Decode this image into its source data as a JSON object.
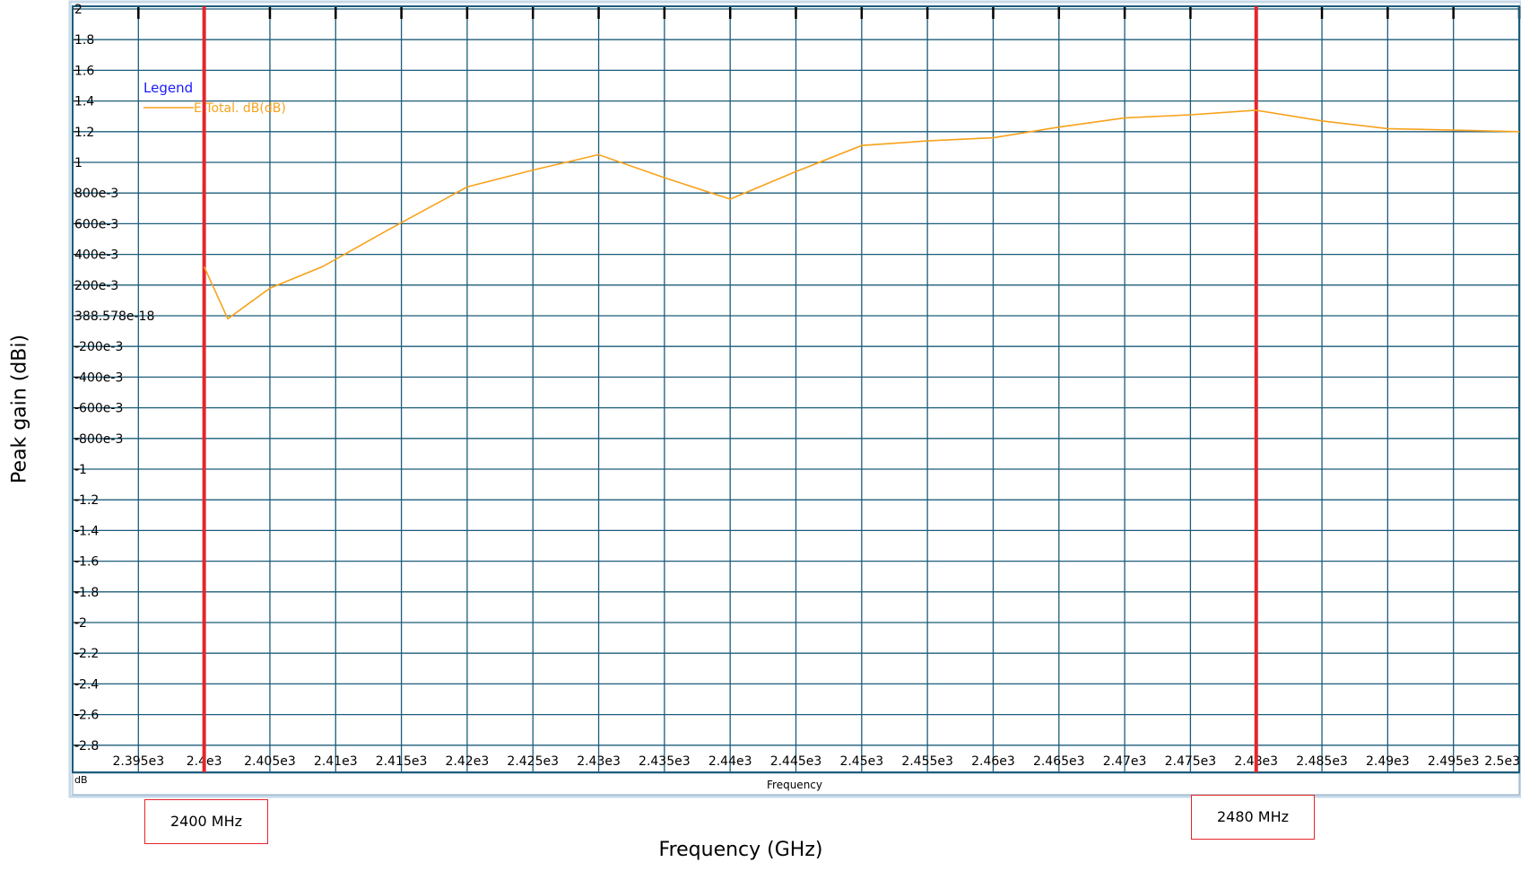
{
  "chart_data": {
    "type": "line",
    "legend_title": "Legend",
    "legend_placement": "top-left",
    "grid": true,
    "xlabel": "Frequency (GHz)",
    "inner_xlabel": "Frequency",
    "ylabel": "Peak gain (dBi)",
    "unit_label": "dB",
    "xlim": [
      2390,
      2500
    ],
    "ylim": [
      -2.9,
      2.0
    ],
    "x_ticks": [
      "2.395e3",
      "2.4e3",
      "2.405e3",
      "2.41e3",
      "2.415e3",
      "2.42e3",
      "2.425e3",
      "2.43e3",
      "2.435e3",
      "2.44e3",
      "2.445e3",
      "2.45e3",
      "2.455e3",
      "2.46e3",
      "2.465e3",
      "2.47e3",
      "2.475e3",
      "2.48e3",
      "2.485e3",
      "2.49e3",
      "2.495e3",
      "2.5e3"
    ],
    "y_ticks": [
      "2",
      "1.8",
      "1.6",
      "1.4",
      "1.2",
      "1",
      "800e-3",
      "600e-3",
      "400e-3",
      "200e-3",
      "388.578e-18",
      "-200e-3",
      "-400e-3",
      "-600e-3",
      "-800e-3",
      "-1",
      "-1.2",
      "-1.4",
      "-1.6",
      "-1.8",
      "-2",
      "-2.2",
      "-2.4",
      "-2.6",
      "-2.8"
    ],
    "series": [
      {
        "name": "E Total. dB(dB)",
        "color": "#f7a21b",
        "x": [
          2400,
          2401.8,
          2405,
          2409,
          2414,
          2420,
          2425,
          2430,
          2435,
          2440,
          2445,
          2450,
          2455,
          2460,
          2465,
          2470,
          2475,
          2480,
          2485,
          2490,
          2495,
          2500
        ],
        "y": [
          0.32,
          -0.02,
          0.18,
          0.32,
          0.56,
          0.84,
          0.95,
          1.05,
          0.9,
          0.76,
          0.94,
          1.11,
          1.14,
          1.16,
          1.23,
          1.29,
          1.31,
          1.34,
          1.27,
          1.22,
          1.21,
          1.2
        ]
      }
    ],
    "markers": [
      {
        "x": 2400,
        "label": "2400 MHz",
        "color": "#e3262b"
      },
      {
        "x": 2480,
        "label": "2480 MHz",
        "color": "#e3262b"
      }
    ],
    "colors": {
      "grid": "#1b5c7a",
      "frame": "#c6d9ea",
      "legend_title": "#1a1aff",
      "series": "#f7a21b",
      "marker": "#e3262b"
    }
  }
}
